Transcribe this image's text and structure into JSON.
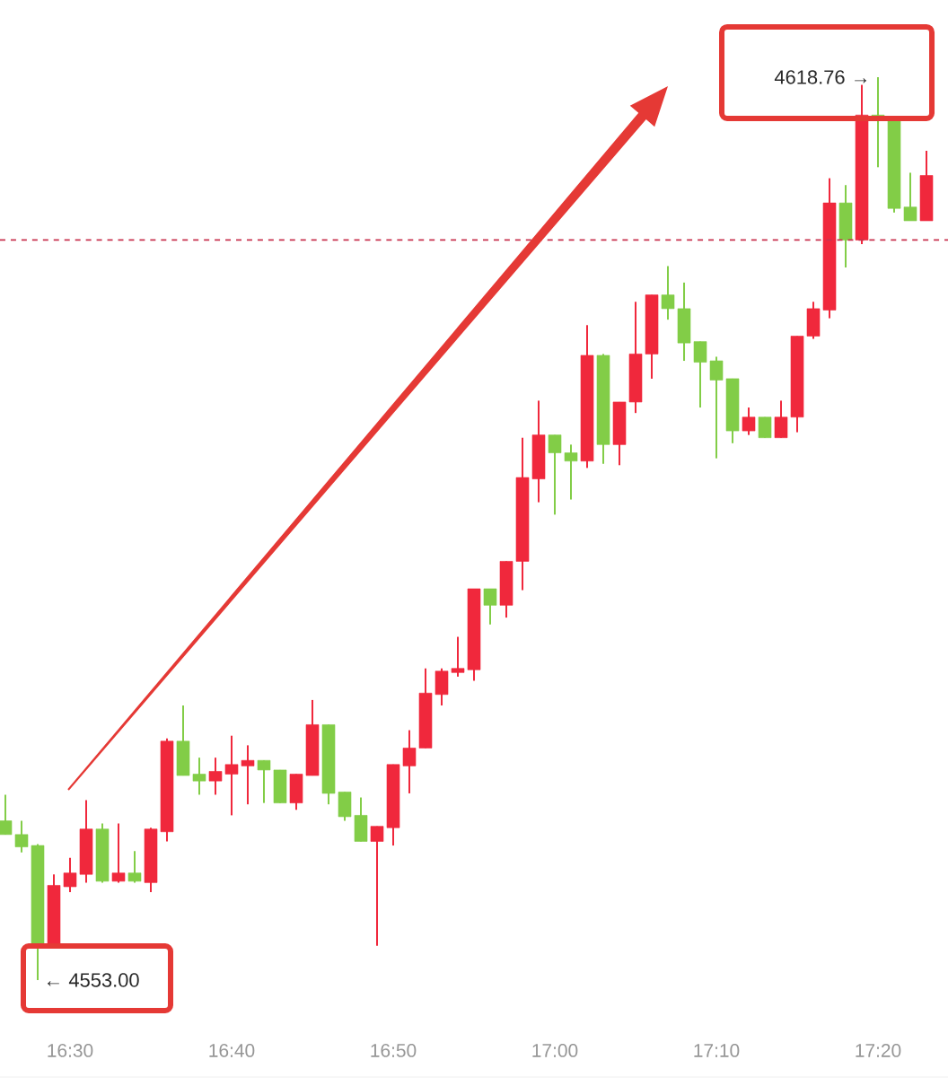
{
  "chart_data": {
    "type": "candlestick",
    "categories": [
      null,
      null,
      null,
      null,
      "16:30",
      null,
      null,
      null,
      null,
      null,
      null,
      null,
      null,
      null,
      "16:40",
      null,
      null,
      null,
      null,
      null,
      null,
      null,
      null,
      null,
      "16:50",
      null,
      null,
      null,
      null,
      null,
      null,
      null,
      null,
      null,
      "17:00",
      null,
      null,
      null,
      null,
      null,
      null,
      null,
      null,
      null,
      "17:10",
      null,
      null,
      null,
      null,
      null,
      null,
      null,
      null,
      null,
      "17:20",
      null,
      null,
      null
    ],
    "ohlc": [
      [
        4564.6,
        4566.5,
        4563.6,
        4563.6
      ],
      [
        4563.6,
        4564.6,
        4562.3,
        4562.7
      ],
      [
        4562.8,
        4562.9,
        4553.0,
        4555.6
      ],
      [
        4555.5,
        4560.7,
        4555.5,
        4559.9
      ],
      [
        4559.8,
        4561.9,
        4559.4,
        4560.8
      ],
      [
        4560.7,
        4566.1,
        4560.1,
        4564.0
      ],
      [
        4564.0,
        4564.4,
        4560.1,
        4560.2
      ],
      [
        4560.2,
        4564.4,
        4560.1,
        4560.8
      ],
      [
        4560.8,
        4562.4,
        4560.1,
        4560.2
      ],
      [
        4560.1,
        4564.1,
        4559.4,
        4564.0
      ],
      [
        4563.8,
        4570.6,
        4563.1,
        4570.4
      ],
      [
        4570.4,
        4573.0,
        4567.9,
        4567.9
      ],
      [
        4568.0,
        4569.2,
        4566.5,
        4567.5
      ],
      [
        4567.5,
        4569.2,
        4566.5,
        4568.2
      ],
      [
        4568.0,
        4570.8,
        4565.0,
        4568.7
      ],
      [
        4568.6,
        4570.1,
        4565.8,
        4569.0
      ],
      [
        4569.0,
        4569.0,
        4565.9,
        4568.3
      ],
      [
        4568.3,
        4568.3,
        4565.9,
        4565.9
      ],
      [
        4565.9,
        4568.0,
        4565.4,
        4568.0
      ],
      [
        4567.9,
        4573.4,
        4567.9,
        4571.6
      ],
      [
        4571.6,
        4571.6,
        4565.8,
        4566.6
      ],
      [
        4566.7,
        4566.7,
        4564.6,
        4564.9
      ],
      [
        4565.0,
        4566.3,
        4563.1,
        4563.1
      ],
      [
        4563.1,
        4564.2,
        4555.5,
        4564.2
      ],
      [
        4564.1,
        4568.7,
        4562.8,
        4568.7
      ],
      [
        4568.6,
        4571.2,
        4566.6,
        4569.9
      ],
      [
        4569.9,
        4575.7,
        4569.9,
        4573.9
      ],
      [
        4573.8,
        4575.7,
        4573.0,
        4575.5
      ],
      [
        4575.4,
        4578.0,
        4575.1,
        4575.7
      ],
      [
        4575.6,
        4581.5,
        4574.8,
        4581.5
      ],
      [
        4581.5,
        4581.5,
        4578.9,
        4580.3
      ],
      [
        4580.3,
        4583.5,
        4579.4,
        4583.5
      ],
      [
        4583.5,
        4592.5,
        4581.4,
        4589.6
      ],
      [
        4589.5,
        4595.2,
        4587.8,
        4592.7
      ],
      [
        4592.7,
        4592.7,
        4586.9,
        4591.4
      ],
      [
        4591.4,
        4592.0,
        4588.0,
        4590.8
      ],
      [
        4590.8,
        4600.7,
        4590.3,
        4598.5
      ],
      [
        4598.5,
        4598.6,
        4590.6,
        4592.0
      ],
      [
        4592.0,
        4595.1,
        4590.5,
        4595.1
      ],
      [
        4595.1,
        4602.4,
        4594.3,
        4598.6
      ],
      [
        4598.6,
        4602.9,
        4596.8,
        4602.9
      ],
      [
        4602.9,
        4605.0,
        4601.1,
        4601.9
      ],
      [
        4601.9,
        4603.8,
        4598.1,
        4599.4
      ],
      [
        4599.5,
        4599.5,
        4594.7,
        4598.0
      ],
      [
        4598.1,
        4598.4,
        4591.0,
        4596.7
      ],
      [
        4596.8,
        4596.8,
        4592.1,
        4593.0
      ],
      [
        4593.0,
        4594.7,
        4592.7,
        4594.0
      ],
      [
        4594.0,
        4594.0,
        4592.5,
        4592.5
      ],
      [
        4592.5,
        4595.2,
        4592.5,
        4594.0
      ],
      [
        4594.0,
        4599.9,
        4592.9,
        4599.9
      ],
      [
        4599.9,
        4602.4,
        4599.7,
        4601.9
      ],
      [
        4601.8,
        4611.4,
        4601.2,
        4609.6
      ],
      [
        4609.6,
        4610.9,
        4604.9,
        4606.9
      ],
      [
        4606.9,
        4618.2,
        4606.6,
        4616.0
      ],
      [
        4616.0,
        4618.76,
        4612.2,
        4615.7
      ],
      [
        4615.6,
        4615.6,
        4608.9,
        4609.2
      ],
      [
        4609.3,
        4611.8,
        4608.3,
        4608.3
      ],
      [
        4608.3,
        4613.4,
        4608.3,
        4611.6
      ]
    ],
    "colors": [
      "#82cd47",
      "#82cd47",
      "#82cd47",
      "#f0283c",
      "#f0283c",
      "#f0283c",
      "#82cd47",
      "#f0283c",
      "#82cd47",
      "#f0283c",
      "#f0283c",
      "#82cd47",
      "#82cd47",
      "#f0283c",
      "#f0283c",
      "#f0283c",
      "#82cd47",
      "#82cd47",
      "#f0283c",
      "#f0283c",
      "#82cd47",
      "#82cd47",
      "#82cd47",
      "#f0283c",
      "#f0283c",
      "#f0283c",
      "#f0283c",
      "#f0283c",
      "#f0283c",
      "#f0283c",
      "#82cd47",
      "#f0283c",
      "#f0283c",
      "#f0283c",
      "#82cd47",
      "#82cd47",
      "#f0283c",
      "#82cd47",
      "#f0283c",
      "#f0283c",
      "#f0283c",
      "#82cd47",
      "#82cd47",
      "#82cd47",
      "#82cd47",
      "#82cd47",
      "#f0283c",
      "#82cd47",
      "#f0283c",
      "#f0283c",
      "#f0283c",
      "#f0283c",
      "#82cd47",
      "#f0283c",
      "#82cd47",
      "#82cd47",
      "#82cd47",
      "#f0283c"
    ],
    "ref_lines": [
      {
        "axis": "y",
        "value": 4606.9,
        "color": "#c8334f",
        "line_style": "dashed"
      }
    ],
    "annotations": [
      "← 4553.00",
      "4618.76 →"
    ]
  }
}
